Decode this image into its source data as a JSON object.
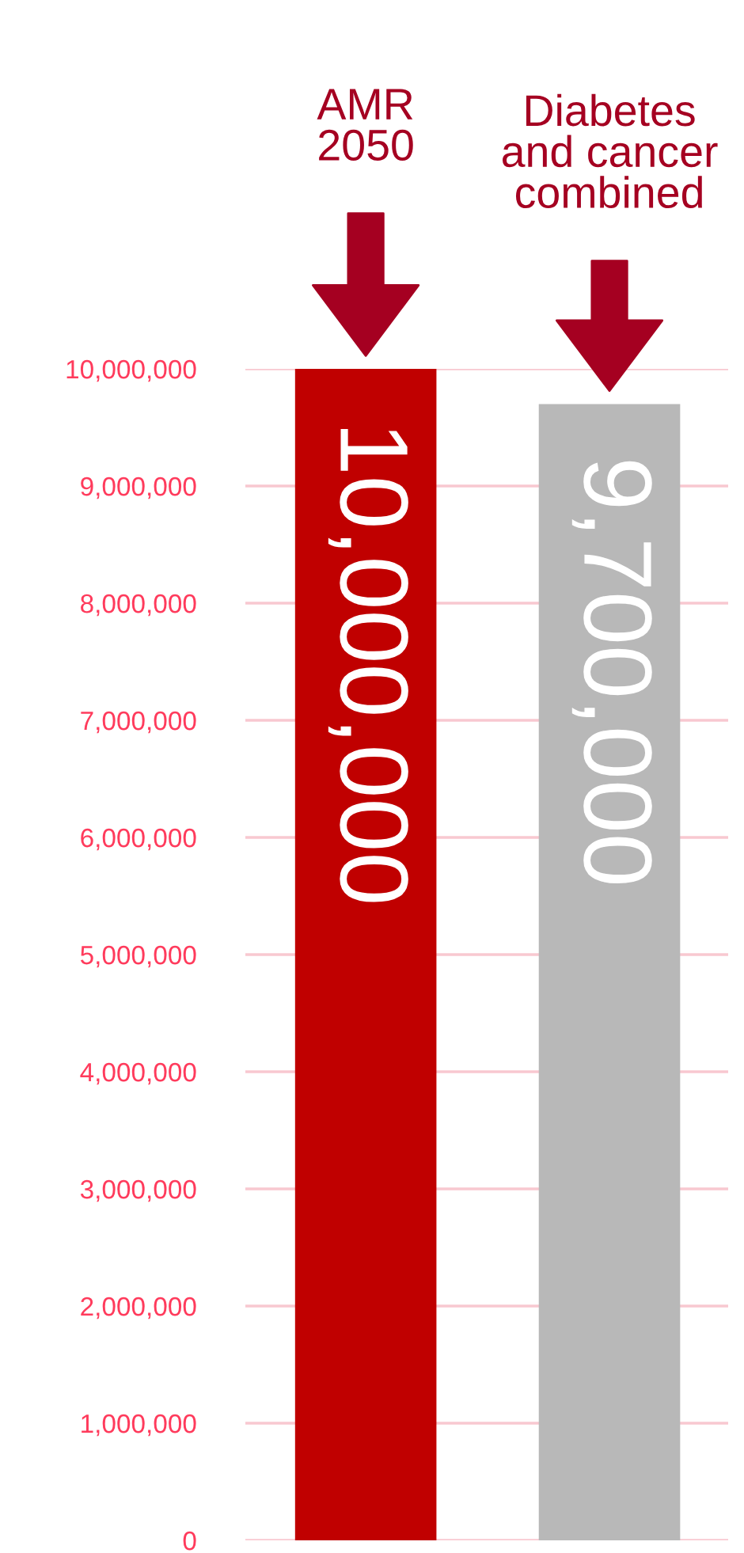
{
  "chart_data": {
    "type": "bar",
    "categories": [
      "AMR\n2050",
      "Diabetes\nand cancer\ncombined"
    ],
    "values": [
      10000000,
      9700000
    ],
    "colors": [
      "#c00000",
      "#b8b8b8"
    ],
    "value_labels": [
      "10,000,000",
      "9,700,000"
    ],
    "ylim": [
      0,
      10000000
    ],
    "yticks": [
      {
        "value": 0,
        "label": "0"
      },
      {
        "value": 1000000,
        "label": "1,000,000"
      },
      {
        "value": 2000000,
        "label": "2,000,000"
      },
      {
        "value": 3000000,
        "label": "3,000,000"
      },
      {
        "value": 4000000,
        "label": "4,000,000"
      },
      {
        "value": 5000000,
        "label": "5,000,000"
      },
      {
        "value": 6000000,
        "label": "6,000,000"
      },
      {
        "value": 7000000,
        "label": "7,000,000"
      },
      {
        "value": 8000000,
        "label": "8,000,000"
      },
      {
        "value": 9000000,
        "label": "9,000,000"
      },
      {
        "value": 10000000,
        "label": "10,000,000"
      }
    ],
    "grid": "y"
  }
}
